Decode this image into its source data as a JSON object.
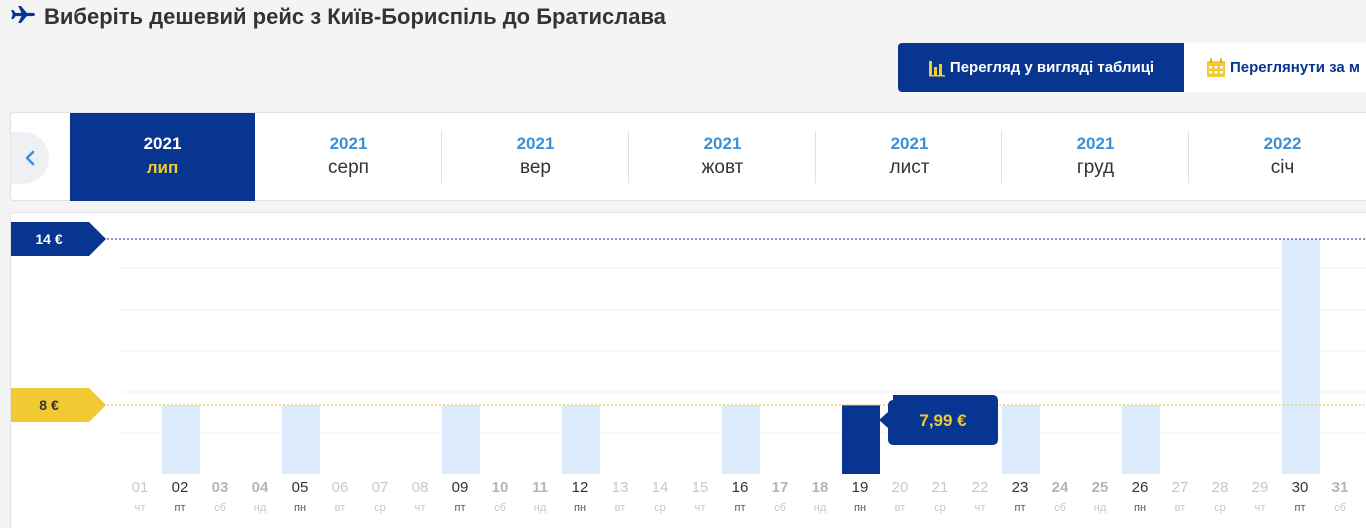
{
  "header": {
    "title": "Виберіть дешевий рейс з Київ-Бориспіль до Братислава",
    "icon": "plane-icon"
  },
  "view_toggle": {
    "table_label": "Перегляд у вигляді таблиці",
    "month_label": "Переглянути за м"
  },
  "months": [
    {
      "year": "2021",
      "name": "лип",
      "active": true
    },
    {
      "year": "2021",
      "name": "серп"
    },
    {
      "year": "2021",
      "name": "вер"
    },
    {
      "year": "2021",
      "name": "жовт"
    },
    {
      "year": "2021",
      "name": "лист"
    },
    {
      "year": "2021",
      "name": "груд"
    },
    {
      "year": "2022",
      "name": "січ"
    }
  ],
  "colors": {
    "brand_blue": "#073590",
    "brand_yellow": "#f1c933",
    "light_bar": "#dcebfb",
    "year_blue": "#3c8fd9"
  },
  "chart_data": {
    "type": "bar",
    "currency": "€",
    "max_label": "14 €",
    "max_value": 14,
    "min_label": "8 €",
    "min_value": 8,
    "selected_day": "19",
    "selected_price": "7,99 €",
    "days": [
      {
        "num": "01",
        "dow": "чт",
        "price": null
      },
      {
        "num": "02",
        "dow": "пт",
        "price": 7.99
      },
      {
        "num": "03",
        "dow": "сб",
        "price": null
      },
      {
        "num": "04",
        "dow": "нд",
        "price": null
      },
      {
        "num": "05",
        "dow": "пн",
        "price": 7.99
      },
      {
        "num": "06",
        "dow": "вт",
        "price": null
      },
      {
        "num": "07",
        "dow": "ср",
        "price": null
      },
      {
        "num": "08",
        "dow": "чт",
        "price": null
      },
      {
        "num": "09",
        "dow": "пт",
        "price": 7.99
      },
      {
        "num": "10",
        "dow": "сб",
        "price": null
      },
      {
        "num": "11",
        "dow": "нд",
        "price": null
      },
      {
        "num": "12",
        "dow": "пн",
        "price": 7.99
      },
      {
        "num": "13",
        "dow": "вт",
        "price": null
      },
      {
        "num": "14",
        "dow": "ср",
        "price": null
      },
      {
        "num": "15",
        "dow": "чт",
        "price": null
      },
      {
        "num": "16",
        "dow": "пт",
        "price": 7.99
      },
      {
        "num": "17",
        "dow": "сб",
        "price": null
      },
      {
        "num": "18",
        "dow": "нд",
        "price": null
      },
      {
        "num": "19",
        "dow": "пн",
        "price": 7.99
      },
      {
        "num": "20",
        "dow": "вт",
        "price": null
      },
      {
        "num": "21",
        "dow": "ср",
        "price": null
      },
      {
        "num": "22",
        "dow": "чт",
        "price": null
      },
      {
        "num": "23",
        "dow": "пт",
        "price": 7.99
      },
      {
        "num": "24",
        "dow": "сб",
        "price": null
      },
      {
        "num": "25",
        "dow": "нд",
        "price": null
      },
      {
        "num": "26",
        "dow": "пн",
        "price": 7.99
      },
      {
        "num": "27",
        "dow": "вт",
        "price": null
      },
      {
        "num": "28",
        "dow": "ср",
        "price": null
      },
      {
        "num": "29",
        "dow": "чт",
        "price": null
      },
      {
        "num": "30",
        "dow": "пт",
        "price": 14
      },
      {
        "num": "31",
        "dow": "сб",
        "price": null
      }
    ]
  }
}
